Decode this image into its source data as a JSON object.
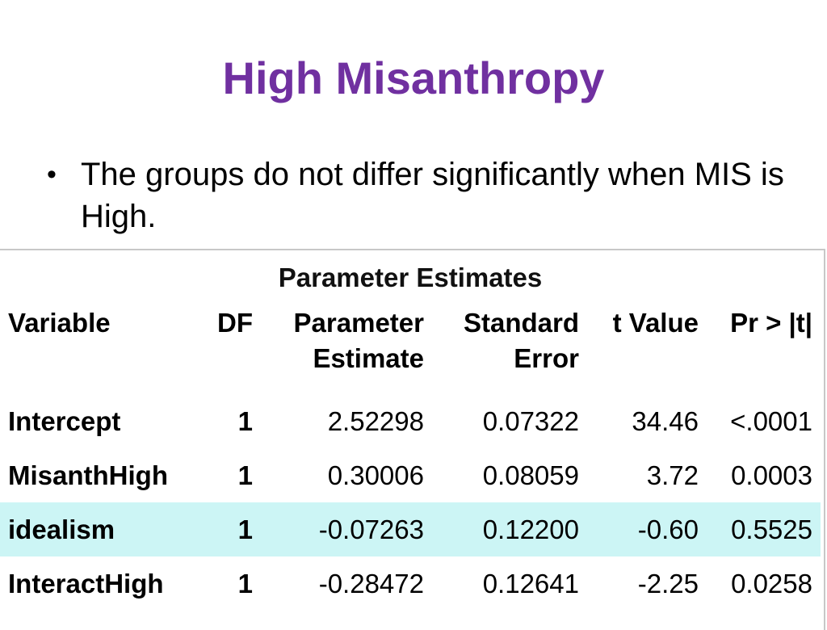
{
  "slide": {
    "title": "High Misanthropy",
    "bullet": "The groups do not differ significantly when MIS is High."
  },
  "table": {
    "caption": "Parameter Estimates",
    "headers": {
      "variable": "Variable",
      "df": "DF",
      "estimate_line1": "Parameter",
      "estimate_line2": "Estimate",
      "stderr_line1": "Standard",
      "stderr_line2": "Error",
      "tvalue": "t Value",
      "pr": "Pr > |t|"
    },
    "rows": [
      {
        "variable": "Intercept",
        "df": "1",
        "estimate": "2.52298",
        "stderr": "0.07322",
        "tvalue": "34.46",
        "pr": "<.0001"
      },
      {
        "variable": "MisanthHigh",
        "df": "1",
        "estimate": "0.30006",
        "stderr": "0.08059",
        "tvalue": "3.72",
        "pr": "0.0003"
      },
      {
        "variable": "idealism",
        "df": "1",
        "estimate": "-0.07263",
        "stderr": "0.12200",
        "tvalue": "-0.60",
        "pr": "0.5525"
      },
      {
        "variable": "InteractHigh",
        "df": "1",
        "estimate": "-0.28472",
        "stderr": "0.12641",
        "tvalue": "-2.25",
        "pr": "0.0258"
      }
    ],
    "highlight_color": "#ccf5f5"
  },
  "colors": {
    "title": "#7030a0",
    "text": "#000000"
  }
}
